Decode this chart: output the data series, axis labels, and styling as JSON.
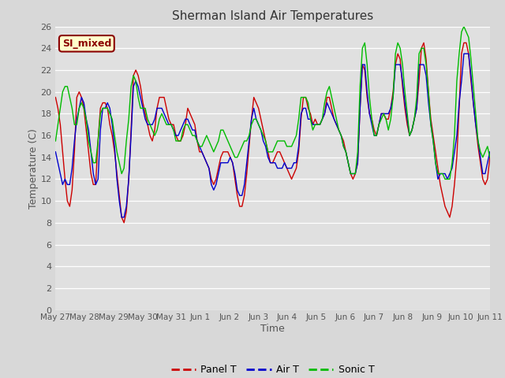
{
  "title": "Sherman Island Air Temperatures",
  "xlabel": "Time",
  "ylabel": "Temperature (C)",
  "ylim": [
    0,
    26
  ],
  "background_color": "#d8d8d8",
  "plot_bg_color": "#e0e0e0",
  "label_box_text": "SI_mixed",
  "label_box_facecolor": "#ffffcc",
  "label_box_edgecolor": "#8b0000",
  "label_box_textcolor": "#8b0000",
  "tick_labels": [
    "May 27",
    "May 28",
    "May 29",
    "May 30",
    "May 31",
    "Jun 1",
    "Jun 2",
    "Jun 3",
    "Jun 4",
    "Jun 5",
    "Jun 6",
    "Jun 7",
    "Jun 8",
    "Jun 9",
    "Jun 10",
    "Jun 11"
  ],
  "line_panel_color": "#cc0000",
  "line_air_color": "#0000cc",
  "line_sonic_color": "#00bb00",
  "line_width": 1.0,
  "legend_labels": [
    "Panel T",
    "Air T",
    "Sonic T"
  ],
  "panel_t": [
    19.5,
    18.5,
    17.0,
    14.5,
    12.0,
    10.0,
    9.5,
    11.0,
    14.5,
    19.5,
    20.0,
    19.5,
    18.5,
    16.5,
    14.5,
    12.5,
    11.5,
    11.5,
    15.5,
    18.5,
    19.0,
    19.0,
    18.5,
    17.0,
    16.0,
    14.5,
    12.5,
    10.5,
    8.5,
    8.0,
    9.0,
    12.0,
    16.5,
    21.5,
    22.0,
    21.5,
    20.5,
    19.0,
    18.0,
    17.0,
    16.0,
    15.5,
    16.5,
    18.5,
    19.5,
    19.5,
    19.5,
    18.5,
    17.5,
    17.0,
    17.0,
    16.0,
    15.5,
    15.5,
    16.0,
    17.0,
    18.5,
    18.0,
    17.5,
    17.0,
    15.5,
    14.5,
    14.5,
    14.0,
    13.5,
    13.0,
    12.0,
    11.5,
    12.0,
    13.0,
    14.0,
    14.5,
    14.5,
    14.5,
    14.0,
    13.5,
    12.0,
    10.5,
    9.5,
    9.5,
    10.5,
    12.5,
    15.0,
    17.5,
    19.5,
    19.0,
    18.5,
    17.5,
    16.5,
    15.5,
    14.5,
    13.5,
    13.5,
    14.0,
    14.5,
    14.5,
    14.0,
    13.5,
    13.0,
    12.5,
    12.0,
    12.5,
    13.0,
    14.5,
    17.5,
    19.5,
    19.5,
    18.5,
    18.0,
    17.0,
    17.5,
    17.0,
    17.0,
    17.5,
    18.0,
    19.5,
    19.5,
    18.5,
    17.5,
    17.0,
    16.5,
    16.0,
    15.5,
    14.5,
    13.5,
    12.5,
    12.0,
    12.5,
    13.5,
    18.5,
    22.5,
    22.0,
    19.5,
    18.0,
    17.5,
    16.5,
    16.0,
    17.0,
    18.0,
    18.0,
    17.5,
    17.5,
    18.5,
    20.0,
    22.5,
    23.5,
    23.0,
    20.5,
    18.5,
    17.0,
    16.0,
    16.5,
    17.5,
    18.5,
    21.0,
    24.0,
    24.5,
    23.0,
    20.0,
    17.5,
    16.0,
    14.5,
    13.0,
    11.5,
    10.5,
    9.5,
    9.0,
    8.5,
    9.5,
    11.5,
    14.0,
    18.5,
    23.5,
    24.5,
    24.5,
    23.5,
    21.0,
    19.0,
    17.0,
    15.0,
    13.5,
    12.0,
    11.5,
    12.0,
    14.0
  ],
  "air_t": [
    14.5,
    13.5,
    12.5,
    11.5,
    12.0,
    11.5,
    11.5,
    13.0,
    15.5,
    17.5,
    18.5,
    19.5,
    19.0,
    17.5,
    16.5,
    14.5,
    12.5,
    11.5,
    12.0,
    16.5,
    18.5,
    18.5,
    19.0,
    18.5,
    17.0,
    15.0,
    12.0,
    10.0,
    8.5,
    8.5,
    9.5,
    12.0,
    16.0,
    20.5,
    21.0,
    20.5,
    19.5,
    18.5,
    17.5,
    17.0,
    17.0,
    17.0,
    17.5,
    18.5,
    18.5,
    18.5,
    18.0,
    17.5,
    17.0,
    17.0,
    16.5,
    16.0,
    16.0,
    16.5,
    17.0,
    17.5,
    17.5,
    17.0,
    16.5,
    16.5,
    15.5,
    15.0,
    14.5,
    14.0,
    13.5,
    13.0,
    11.5,
    11.0,
    11.5,
    12.5,
    13.5,
    13.5,
    13.5,
    13.5,
    14.0,
    13.5,
    12.5,
    11.0,
    10.5,
    10.5,
    11.5,
    13.5,
    15.5,
    17.5,
    18.5,
    17.5,
    17.0,
    16.5,
    15.5,
    15.0,
    14.0,
    13.5,
    13.5,
    13.5,
    13.0,
    13.0,
    13.0,
    13.5,
    13.0,
    13.0,
    13.0,
    13.5,
    13.5,
    15.0,
    18.0,
    18.5,
    18.5,
    17.5,
    17.5,
    17.0,
    17.0,
    17.0,
    17.0,
    17.5,
    18.0,
    19.0,
    18.5,
    18.0,
    17.5,
    17.0,
    16.5,
    16.0,
    15.0,
    14.5,
    13.5,
    12.5,
    12.5,
    12.5,
    13.5,
    18.5,
    22.5,
    22.5,
    20.0,
    18.0,
    17.0,
    16.0,
    16.0,
    17.0,
    18.0,
    18.0,
    18.0,
    18.0,
    18.5,
    19.5,
    22.5,
    22.5,
    22.5,
    21.0,
    19.0,
    17.5,
    16.0,
    16.5,
    17.5,
    18.5,
    22.5,
    22.5,
    22.5,
    21.5,
    19.0,
    17.0,
    15.5,
    13.5,
    12.0,
    12.5,
    12.5,
    12.5,
    12.0,
    12.5,
    13.0,
    14.5,
    16.0,
    19.0,
    21.0,
    23.5,
    23.5,
    23.5,
    21.5,
    19.0,
    17.0,
    15.5,
    14.0,
    12.5,
    12.5,
    13.5,
    14.5
  ],
  "sonic_t": [
    15.5,
    17.0,
    18.5,
    20.0,
    20.5,
    20.5,
    19.5,
    18.5,
    17.0,
    17.0,
    18.5,
    19.0,
    18.5,
    17.5,
    15.5,
    14.5,
    13.5,
    13.5,
    15.5,
    18.0,
    18.5,
    18.5,
    18.5,
    18.0,
    17.5,
    16.0,
    14.5,
    13.5,
    12.5,
    13.0,
    15.5,
    17.5,
    20.5,
    21.5,
    21.0,
    19.5,
    18.5,
    18.5,
    18.5,
    17.5,
    17.0,
    16.5,
    16.0,
    16.5,
    17.5,
    18.0,
    17.5,
    17.0,
    17.0,
    17.0,
    16.5,
    15.5,
    15.5,
    15.5,
    16.5,
    17.0,
    17.0,
    16.5,
    16.0,
    16.0,
    15.5,
    15.0,
    15.0,
    15.5,
    16.0,
    15.5,
    15.0,
    14.5,
    15.0,
    15.5,
    16.5,
    16.5,
    16.0,
    15.5,
    15.0,
    14.5,
    14.0,
    14.0,
    14.5,
    15.0,
    15.5,
    15.5,
    16.0,
    17.0,
    17.5,
    17.5,
    17.0,
    16.5,
    16.0,
    15.5,
    14.5,
    14.5,
    14.5,
    15.0,
    15.5,
    15.5,
    15.5,
    15.5,
    15.0,
    15.0,
    15.0,
    15.5,
    16.0,
    17.5,
    19.5,
    19.5,
    19.5,
    19.0,
    17.5,
    16.5,
    17.0,
    17.0,
    17.0,
    17.5,
    19.0,
    20.0,
    20.5,
    19.5,
    18.5,
    17.5,
    16.5,
    16.0,
    15.0,
    14.5,
    13.5,
    12.5,
    12.5,
    12.5,
    14.5,
    20.5,
    24.0,
    24.5,
    22.5,
    19.5,
    17.5,
    16.0,
    16.0,
    17.0,
    17.5,
    18.0,
    17.5,
    16.5,
    17.5,
    19.5,
    23.5,
    24.5,
    24.0,
    22.5,
    20.0,
    18.0,
    16.0,
    16.5,
    17.5,
    19.5,
    23.5,
    24.0,
    24.0,
    22.5,
    20.0,
    17.0,
    15.5,
    13.5,
    12.5,
    12.5,
    12.5,
    12.0,
    12.0,
    12.0,
    13.5,
    16.0,
    21.0,
    23.5,
    25.5,
    26.0,
    25.5,
    25.0,
    23.0,
    20.5,
    18.0,
    15.5,
    14.5,
    14.0,
    14.5,
    15.0,
    14.0
  ]
}
